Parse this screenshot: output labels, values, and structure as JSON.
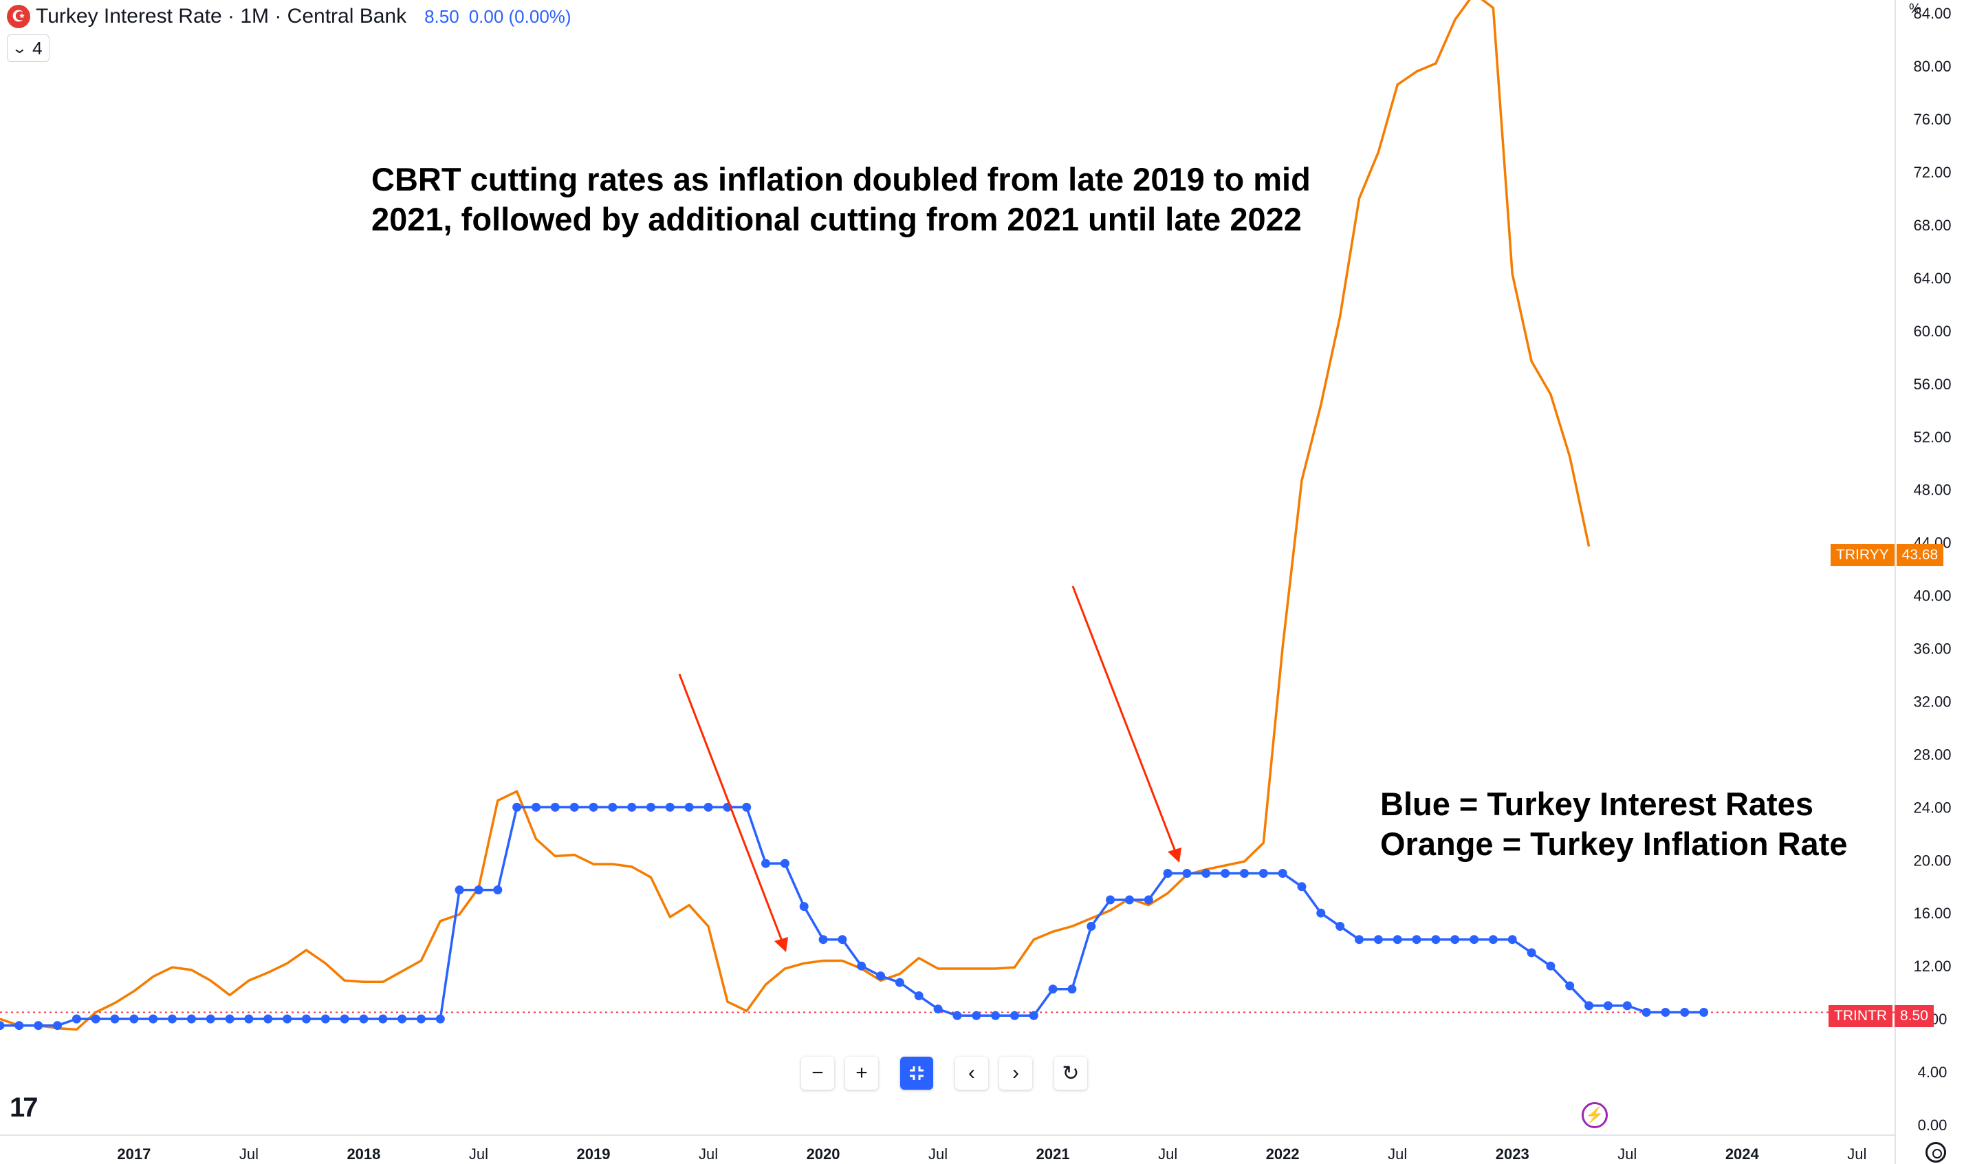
{
  "header": {
    "flag_symbol": "☪",
    "title": "Turkey Interest Rate · 1M · Central Bank",
    "last_value": "8.50",
    "change": "0.00 (0.00%)"
  },
  "collapse_button": {
    "label": "4"
  },
  "annotations": {
    "main_line1": "CBRT cutting rates as inflation doubled from late 2019 to mid",
    "main_line2": "2021, followed by additional cutting from 2021 until late 2022",
    "legend_line1": "Blue = Turkey Interest Rates",
    "legend_line2": "Orange = Turkey Inflation Rate"
  },
  "price_tags": {
    "inflation": {
      "symbol": "TRIRYY",
      "value": "43.68",
      "color": "#f57c00"
    },
    "rate": {
      "symbol": "TRINTR",
      "value": "8.50",
      "color": "#f23645"
    }
  },
  "axis": {
    "unit": "%"
  },
  "toolbar_icons": [
    "zoom-out-icon",
    "zoom-in-icon",
    "reset-scale-icon",
    "scroll-left-icon",
    "scroll-right-icon",
    "reset-chart-icon"
  ],
  "chart_data": {
    "type": "line",
    "xlim": [
      "2016-06",
      "2024-09"
    ],
    "ylim": [
      0,
      85
    ],
    "grid": false,
    "y_ticks": [
      "0.00",
      "4.00",
      "8.00",
      "12.00",
      "16.00",
      "20.00",
      "24.00",
      "28.00",
      "32.00",
      "36.00",
      "40.00",
      "44.00",
      "48.00",
      "52.00",
      "56.00",
      "60.00",
      "64.00",
      "68.00",
      "72.00",
      "76.00",
      "80.00",
      "84.00"
    ],
    "x_ticks": [
      {
        "label": "2017",
        "date": "2017-01",
        "bold": true
      },
      {
        "label": "Jul",
        "date": "2017-07",
        "bold": false
      },
      {
        "label": "2018",
        "date": "2018-01",
        "bold": true
      },
      {
        "label": "Jul",
        "date": "2018-07",
        "bold": false
      },
      {
        "label": "2019",
        "date": "2019-01",
        "bold": true
      },
      {
        "label": "Jul",
        "date": "2019-07",
        "bold": false
      },
      {
        "label": "2020",
        "date": "2020-01",
        "bold": true
      },
      {
        "label": "Jul",
        "date": "2020-07",
        "bold": false
      },
      {
        "label": "2021",
        "date": "2021-01",
        "bold": true
      },
      {
        "label": "Jul",
        "date": "2021-07",
        "bold": false
      },
      {
        "label": "2022",
        "date": "2022-01",
        "bold": true
      },
      {
        "label": "Jul",
        "date": "2022-07",
        "bold": false
      },
      {
        "label": "2023",
        "date": "2023-01",
        "bold": true
      },
      {
        "label": "Jul",
        "date": "2023-07",
        "bold": false
      },
      {
        "label": "2024",
        "date": "2024-01",
        "bold": true
      },
      {
        "label": "Jul",
        "date": "2024-07",
        "bold": false
      }
    ],
    "series": [
      {
        "symbol": "TRINTR",
        "color": "#2962ff",
        "markers": true,
        "start": "2016-06",
        "values": [
          7.5,
          7.5,
          7.5,
          7.5,
          8.0,
          8.0,
          8.0,
          8.0,
          8.0,
          8.0,
          8.0,
          8.0,
          8.0,
          8.0,
          8.0,
          8.0,
          8.0,
          8.0,
          8.0,
          8.0,
          8.0,
          8.0,
          8.0,
          8.0,
          17.75,
          17.75,
          17.75,
          24.0,
          24.0,
          24.0,
          24.0,
          24.0,
          24.0,
          24.0,
          24.0,
          24.0,
          24.0,
          24.0,
          24.0,
          24.0,
          19.75,
          19.75,
          16.5,
          14.0,
          14.0,
          12.0,
          11.25,
          10.75,
          9.75,
          8.75,
          8.25,
          8.25,
          8.25,
          8.25,
          8.25,
          10.25,
          10.25,
          15.0,
          17.0,
          17.0,
          17.0,
          19.0,
          19.0,
          19.0,
          19.0,
          19.0,
          19.0,
          19.0,
          18.0,
          16.0,
          15.0,
          14.0,
          14.0,
          14.0,
          14.0,
          14.0,
          14.0,
          14.0,
          14.0,
          14.0,
          13.0,
          12.0,
          10.5,
          9.0,
          9.0,
          9.0,
          8.5,
          8.5,
          8.5,
          8.5
        ]
      },
      {
        "symbol": "TRIRYY",
        "color": "#f57c00",
        "markers": false,
        "start": "2016-06",
        "values": [
          8.0,
          7.5,
          7.5,
          7.3,
          7.2,
          8.5,
          9.2,
          10.1,
          11.2,
          11.9,
          11.7,
          10.9,
          9.8,
          10.9,
          11.5,
          12.2,
          13.2,
          12.2,
          10.9,
          10.8,
          10.8,
          11.6,
          12.4,
          15.4,
          15.9,
          17.9,
          24.5,
          25.2,
          21.6,
          20.3,
          20.4,
          19.7,
          19.7,
          19.5,
          18.7,
          15.7,
          16.6,
          15.0,
          9.3,
          8.6,
          10.6,
          11.8,
          12.2,
          12.4,
          12.4,
          11.8,
          10.9,
          11.4,
          12.6,
          11.8,
          11.8,
          11.8,
          11.8,
          11.9,
          14.0,
          14.6,
          15.0,
          15.6,
          16.2,
          17.1,
          16.6,
          17.5,
          18.9,
          19.3,
          19.6,
          19.9,
          21.3,
          36.1,
          48.7,
          54.4,
          61.1,
          70.0,
          73.5,
          78.6,
          79.6,
          80.2,
          83.5,
          85.5,
          84.4,
          64.3,
          57.7,
          55.2,
          50.5,
          43.7
        ]
      }
    ]
  }
}
